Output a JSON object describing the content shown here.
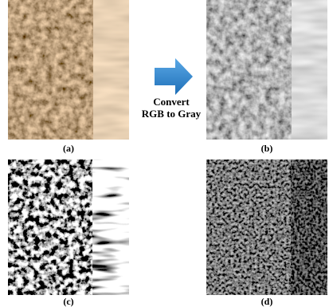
{
  "panels": [
    {
      "label": "(a)"
    },
    {
      "label": "(b)"
    },
    {
      "label": "(c)"
    },
    {
      "label": "(d)"
    }
  ],
  "arrow_text": [
    "Convert",
    "RGB to Gray"
  ]
}
